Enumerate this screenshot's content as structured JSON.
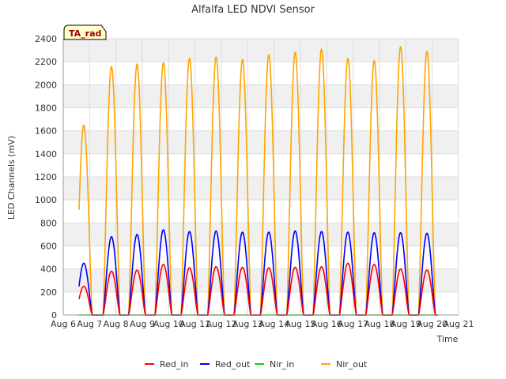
{
  "chart_data": {
    "type": "line",
    "title": "Alfalfa LED NDVI Sensor",
    "badge": "TA_rad",
    "xlabel": "Time",
    "ylabel": "LED Channels (mV)",
    "xlim": [
      6,
      21
    ],
    "ylim": [
      0,
      2400
    ],
    "x_ticks": [
      {
        "v": 6,
        "label": "Aug 6"
      },
      {
        "v": 7,
        "label": "Aug 7"
      },
      {
        "v": 8,
        "label": "Aug 8"
      },
      {
        "v": 9,
        "label": "Aug 9"
      },
      {
        "v": 10,
        "label": "Aug 10"
      },
      {
        "v": 11,
        "label": "Aug 11"
      },
      {
        "v": 12,
        "label": "Aug 12"
      },
      {
        "v": 13,
        "label": "Aug 13"
      },
      {
        "v": 14,
        "label": "Aug 14"
      },
      {
        "v": 15,
        "label": "Aug 15"
      },
      {
        "v": 16,
        "label": "Aug 16"
      },
      {
        "v": 17,
        "label": "Aug 17"
      },
      {
        "v": 18,
        "label": "Aug 18"
      },
      {
        "v": 19,
        "label": "Aug 19"
      },
      {
        "v": 20,
        "label": "Aug 20"
      },
      {
        "v": 21,
        "label": "Aug 21"
      }
    ],
    "y_ticks": [
      0,
      200,
      400,
      600,
      800,
      1000,
      1200,
      1400,
      1600,
      1800,
      2000,
      2200,
      2400
    ],
    "grid": true,
    "legend_position": "bottom",
    "day_centers": [
      6.78,
      7.83,
      8.8,
      9.8,
      10.79,
      11.8,
      12.8,
      13.8,
      14.8,
      15.8,
      16.8,
      17.8,
      18.8,
      19.8
    ],
    "series": [
      {
        "name": "Red_in",
        "color": "#ff0000",
        "peaks": [
          250,
          380,
          390,
          440,
          410,
          420,
          415,
          410,
          415,
          420,
          450,
          440,
          400,
          390
        ]
      },
      {
        "name": "Red_out",
        "color": "#0000ff",
        "peaks": [
          450,
          680,
          700,
          740,
          725,
          730,
          720,
          720,
          730,
          725,
          720,
          715,
          715,
          710
        ]
      },
      {
        "name": "Nir_in",
        "color": "#00dd00",
        "peaks": [
          0,
          0,
          0,
          0,
          0,
          0,
          0,
          0,
          0,
          0,
          0,
          0,
          0,
          0
        ]
      },
      {
        "name": "Nir_out",
        "color": "#ffa500",
        "peaks": [
          1650,
          2160,
          2180,
          2190,
          2230,
          2240,
          2220,
          2260,
          2280,
          2310,
          2230,
          2210,
          2330,
          2290
        ]
      }
    ]
  }
}
